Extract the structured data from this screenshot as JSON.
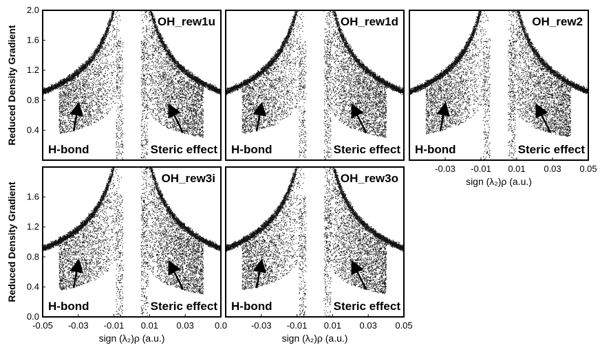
{
  "chart_data": [
    {
      "type": "scatter",
      "title": "OH_rew1u",
      "annotations": [
        "H-bond",
        "Steric effect"
      ],
      "xlim": [
        -0.05,
        0.05
      ],
      "ylim": [
        0.0,
        2.0
      ],
      "ylabel": "Reduced Density Gradient",
      "yticks": [
        "0.4",
        "0.8",
        "1.2",
        "1.6",
        "2.0"
      ],
      "xticks": [],
      "xlabel": ""
    },
    {
      "type": "scatter",
      "title": "OH_rew1d",
      "annotations": [
        "H-bond",
        "Steric effect"
      ],
      "xlim": [
        -0.05,
        0.05
      ],
      "ylim": [
        0.0,
        2.0
      ],
      "ylabel": "",
      "yticks": [],
      "xticks": [],
      "xlabel": ""
    },
    {
      "type": "scatter",
      "title": "OH_rew2",
      "annotations": [
        "H-bond",
        "Steric effect"
      ],
      "xlim": [
        -0.05,
        0.05
      ],
      "ylim": [
        0.0,
        2.0
      ],
      "ylabel": "",
      "yticks": [],
      "xticks": [
        "-0.03",
        "-0.01",
        "0.01",
        "0.03",
        "0.05"
      ],
      "xlabel": "sign (λ₂)ρ (a.u.)"
    },
    {
      "type": "scatter",
      "title": "OH_rew3i",
      "annotations": [
        "H-bond",
        "Steric effect"
      ],
      "xlim": [
        -0.05,
        0.05
      ],
      "ylim": [
        0.0,
        2.0
      ],
      "ylabel": "Reduced Density Gradient",
      "yticks": [
        "0.0",
        "0.4",
        "0.8",
        "1.2",
        "1.6"
      ],
      "xticks": [
        "-0.05",
        "-0.03",
        "-0.01",
        "0.01",
        "0.03",
        "0.0"
      ],
      "xlabel": "sign (λ₂)ρ (a.u.)"
    },
    {
      "type": "scatter",
      "title": "OH_rew3o",
      "annotations": [
        "H-bond",
        "Steric effect"
      ],
      "xlim": [
        -0.05,
        0.05
      ],
      "ylim": [
        0.0,
        2.0
      ],
      "ylabel": "",
      "yticks": [],
      "xticks": [
        "-0.03",
        "-0.01",
        "0.01",
        "0.03",
        "0.05"
      ],
      "xlabel": "sign (λ₂)ρ (a.u.)"
    }
  ]
}
